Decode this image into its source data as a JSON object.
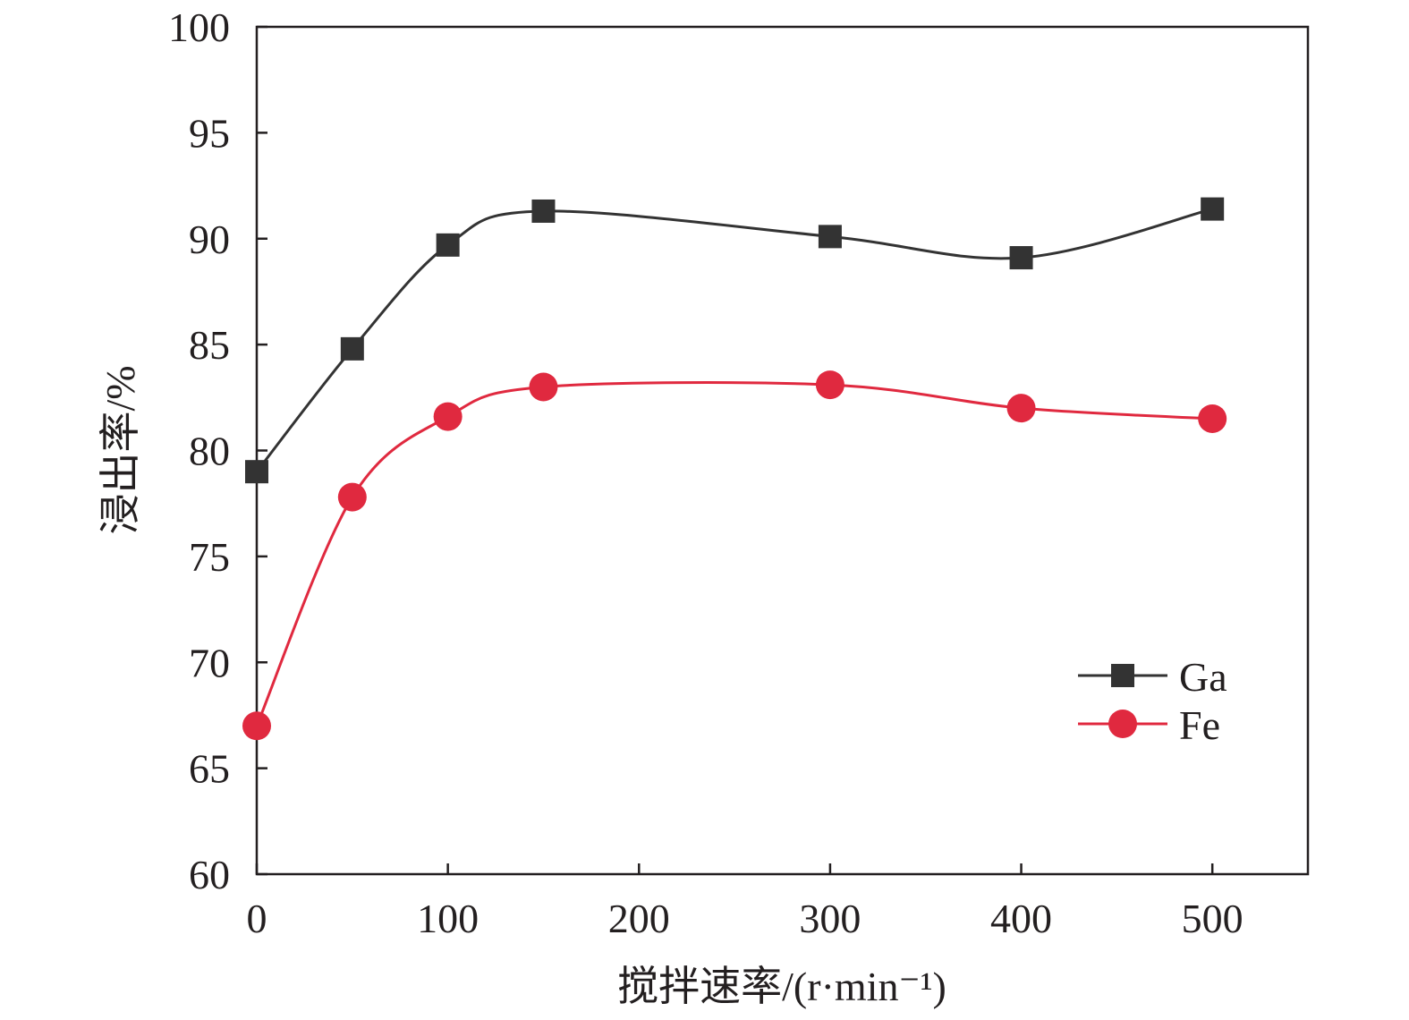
{
  "chart_data": {
    "type": "line",
    "title": "",
    "xlabel": "搅拌速率/(r·min⁻¹)",
    "ylabel": "浸出率/%",
    "xlim": [
      0,
      550
    ],
    "ylim": [
      60,
      100
    ],
    "xticks": [
      0,
      100,
      200,
      300,
      400,
      500
    ],
    "yticks": [
      60,
      65,
      70,
      75,
      80,
      85,
      90,
      95,
      100
    ],
    "grid": false,
    "legend_position": "lower-right",
    "x": [
      0,
      50,
      100,
      150,
      300,
      400,
      500
    ],
    "series": [
      {
        "name": "Ga",
        "marker": "square",
        "color": "#333333",
        "values": [
          79.0,
          84.8,
          89.7,
          91.3,
          90.1,
          89.1,
          91.4
        ]
      },
      {
        "name": "Fe",
        "marker": "circle",
        "color": "#e0293f",
        "values": [
          67.0,
          77.8,
          81.6,
          83.0,
          83.1,
          82.0,
          81.5
        ]
      }
    ]
  }
}
